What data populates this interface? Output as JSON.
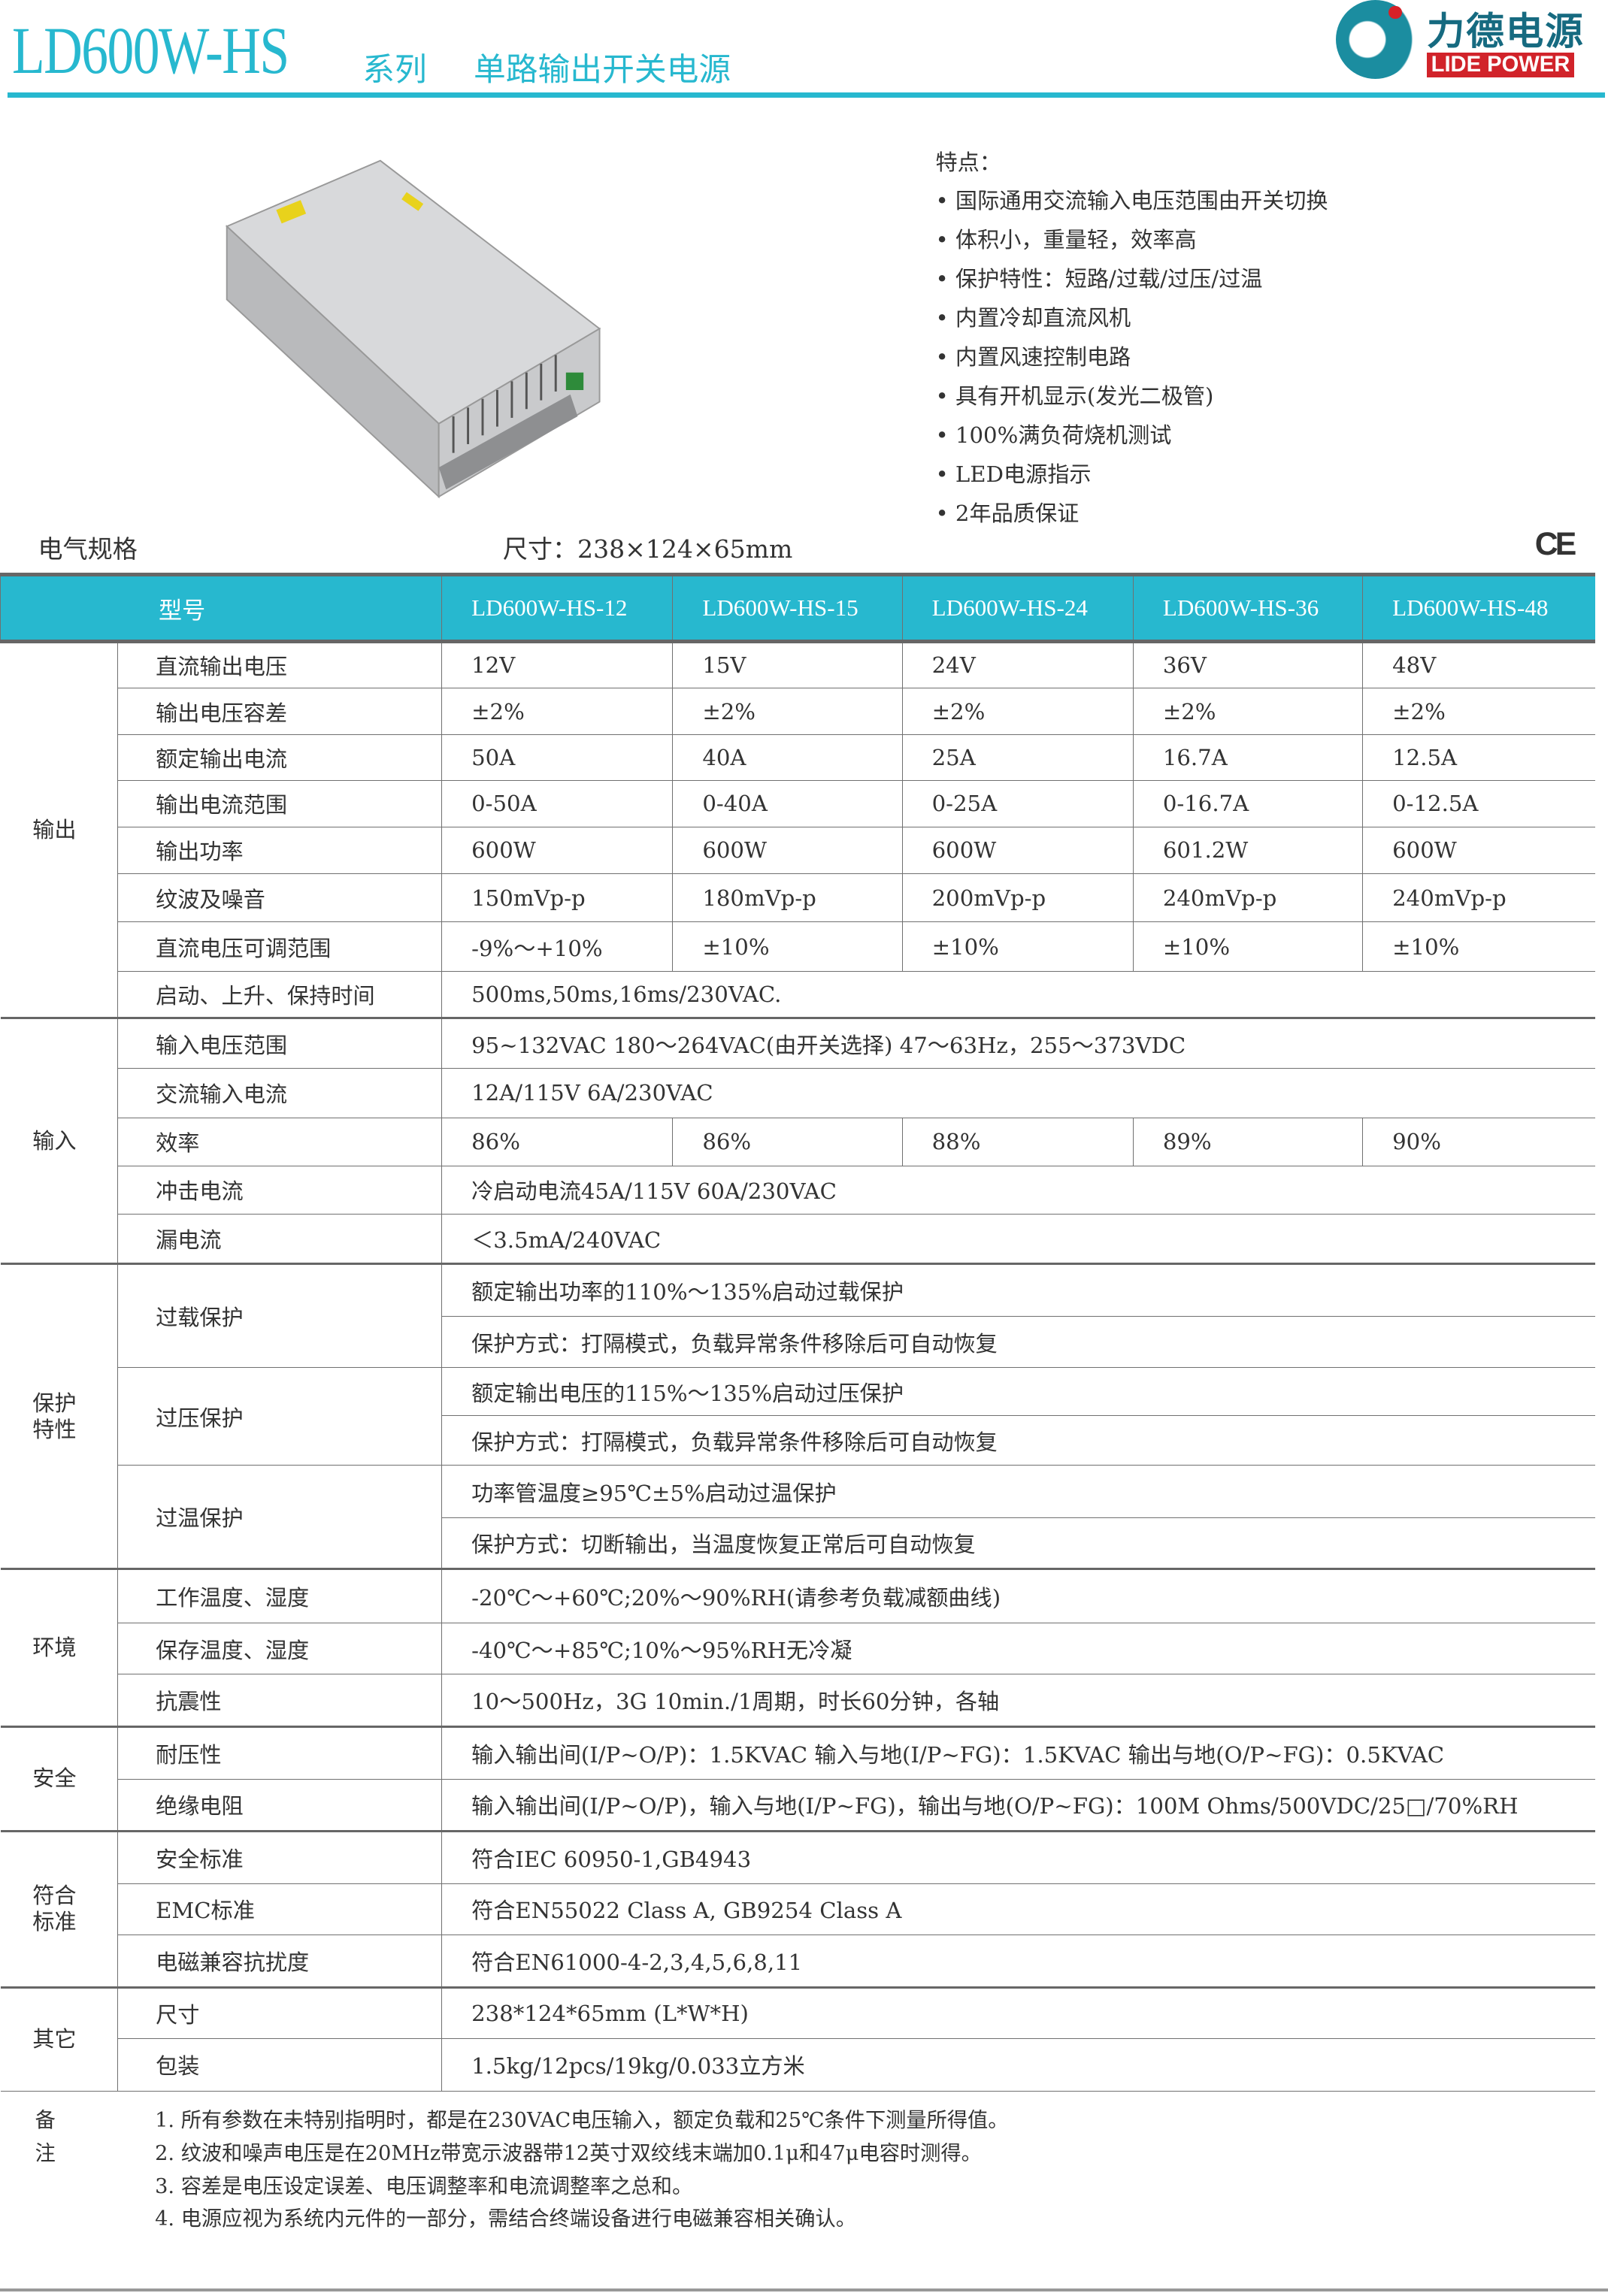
{
  "header": {
    "model": "LD600W-HS",
    "series": "系列",
    "subtitle": "单路输出开关电源",
    "brand_cn": "力德电源",
    "brand_en": "LIDE POWER",
    "accent": "#27b8cf"
  },
  "features": {
    "title": "特点：",
    "items": [
      "• 国际通用交流输入电压范围由开关切换",
      "• 体积小，重量轻，效率高",
      "• 保护特性：短路/过载/过压/过温",
      "• 内置冷却直流风机",
      "• 内置风速控制电路",
      "• 具有开机显示(发光二极管)",
      "• 100%满负荷烧机测试",
      "•  LED电源指示",
      "• 2年品质保证"
    ]
  },
  "spec_title": "电气规格",
  "dimensions": "尺寸：238×124×65mm",
  "ce_mark": "CE",
  "table": {
    "header": {
      "label": "型号",
      "models": [
        "LD600W-HS-12",
        "LD600W-HS-15",
        "LD600W-HS-24",
        "LD600W-HS-36",
        "LD600W-HS-48"
      ]
    },
    "groups": [
      {
        "label": "输出",
        "rows": [
          {
            "label": "直流输出电压",
            "values": [
              "12V",
              "15V",
              "24V",
              "36V",
              "48V"
            ]
          },
          {
            "label": "输出电压容差",
            "values": [
              "±2%",
              "±2%",
              "±2%",
              "±2%",
              "±2%"
            ]
          },
          {
            "label": "额定输出电流",
            "values": [
              "50A",
              "40A",
              "25A",
              "16.7A",
              "12.5A"
            ]
          },
          {
            "label": "输出电流范围",
            "values": [
              "0-50A",
              "0-40A",
              "0-25A",
              "0-16.7A",
              "0-12.5A"
            ]
          },
          {
            "label": "输出功率",
            "values": [
              "600W",
              "600W",
              "600W",
              "601.2W",
              "600W"
            ]
          },
          {
            "label": "纹波及噪音",
            "values": [
              "150mVp-p",
              "180mVp-p",
              "200mVp-p",
              "240mVp-p",
              "240mVp-p"
            ]
          },
          {
            "label": "直流电压可调范围",
            "values": [
              "-9%～+10%",
              "±10%",
              "±10%",
              "±10%",
              "±10%"
            ]
          },
          {
            "label": "启动、上升、保持时间",
            "value": "500ms,50ms,16ms/230VAC."
          }
        ]
      },
      {
        "label": "输入",
        "rows": [
          {
            "label": "输入电压范围",
            "value": "95~132VAC 180～264VAC(由开关选择)  47～63Hz，255～373VDC"
          },
          {
            "label": "交流输入电流",
            "value": " 12A/115V  6A/230VAC"
          },
          {
            "label": "效率",
            "values": [
              "86%",
              "86%",
              "88%",
              "89%",
              "90%"
            ]
          },
          {
            "label": "冲击电流",
            "value": "冷启动电流45A/115V  60A/230VAC"
          },
          {
            "label": "漏电流",
            "value": "＜3.5mA/240VAC"
          }
        ]
      },
      {
        "label": "保护\n特性",
        "rows": [
          {
            "label": "过载保护",
            "lines": [
              "额定输出功率的110%～135%启动过载保护",
              "保护方式：打隔模式，负载异常条件移除后可自动恢复"
            ]
          },
          {
            "label": "过压保护",
            "lines": [
              "额定输出电压的115%～135%启动过压保护",
              "保护方式：打隔模式，负载异常条件移除后可自动恢复"
            ]
          },
          {
            "label": "过温保护",
            "lines": [
              "功率管温度≥95℃±5%启动过温保护",
              "保护方式：切断输出，当温度恢复正常后可自动恢复"
            ]
          }
        ]
      },
      {
        "label": "环境",
        "rows": [
          {
            "label": "工作温度、湿度",
            "value": "-20℃～+60℃;20%～90%RH(请参考负载减额曲线)"
          },
          {
            "label": "保存温度、湿度",
            "value": "-40℃～+85℃;10%～95%RH无冷凝"
          },
          {
            "label": "抗震性",
            "value": "10～500Hz，3G 10min./1周期，时长60分钟，各轴"
          }
        ]
      },
      {
        "label": "安全",
        "rows": [
          {
            "label": "耐压性",
            "value": "输入输出间(I/P~O/P)：1.5KVAC   输入与地(I/P~FG)：1.5KVAC   输出与地(O/P~FG)：0.5KVAC"
          },
          {
            "label": "绝缘电阻",
            "value": "输入输出间(I/P~O/P)，输入与地(I/P~FG)，输出与地(O/P~FG)：100M Ohms/500VDC/25□/70%RH"
          }
        ]
      },
      {
        "label": "符合\n标准",
        "rows": [
          {
            "label": "安全标准",
            "value": "符合IEC 60950-1,GB4943"
          },
          {
            "label": "EMC标准",
            "value": "符合EN55022 Class A, GB9254 Class A"
          },
          {
            "label": "电磁兼容抗扰度",
            "value": "符合EN61000-4-2,3,4,5,6,8,11"
          }
        ]
      },
      {
        "label": "其它",
        "rows": [
          {
            "label": "尺寸",
            "value": "238*124*65mm (L*W*H)"
          },
          {
            "label": "包装",
            "value": "1.5kg/12pcs/19kg/0.033立方米"
          }
        ]
      }
    ]
  },
  "notes": {
    "label": "备注",
    "items": [
      "1. 所有参数在未特别指明时，都是在230VAC电压输入，额定负载和25℃条件下测量所得值。",
      "2. 纹波和噪声电压是在20MHz带宽示波器带12英寸双绞线末端加0.1μ和47μ电容时测得。",
      "3. 容差是电压设定误差、电压调整率和电流调整率之总和。",
      "4. 电源应视为系统内元件的一部分，需结合终端设备进行电磁兼容相关确认。"
    ]
  }
}
